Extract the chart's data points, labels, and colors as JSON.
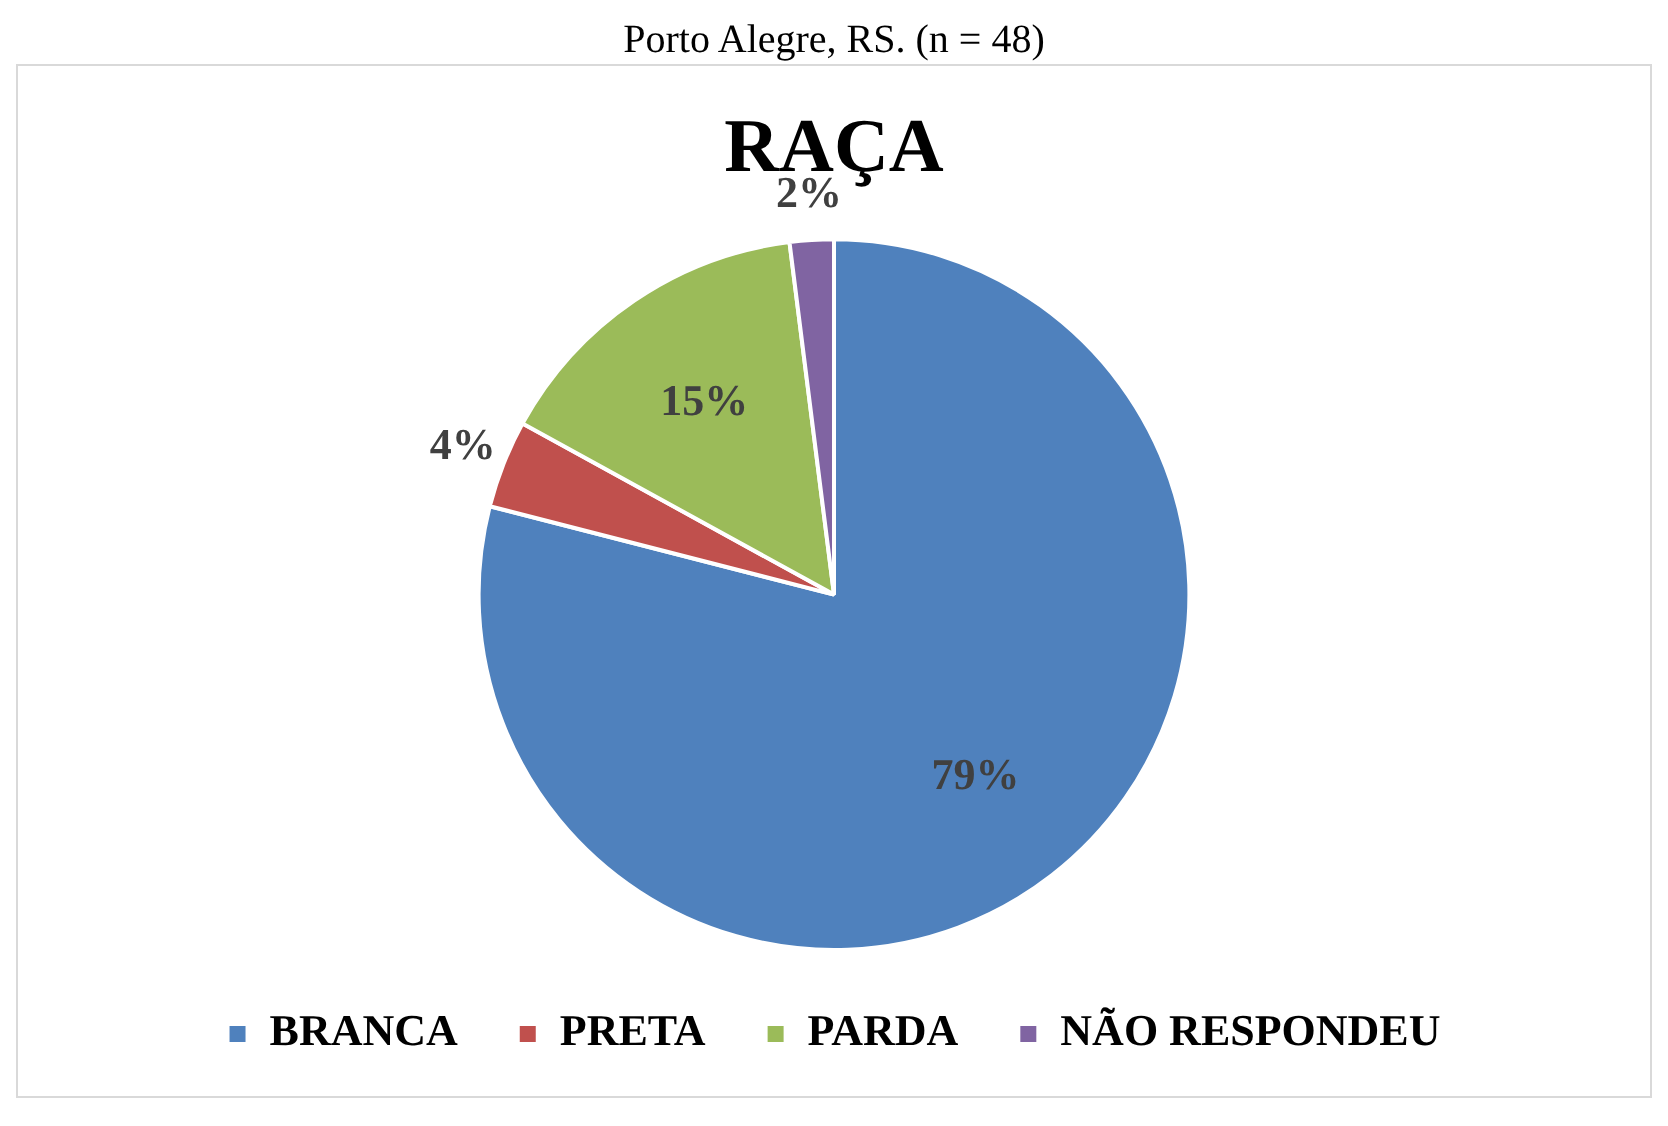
{
  "chart_data": {
    "type": "pie",
    "title": "RAÇA",
    "annotations": [
      "Porto Alegre, RS. (n = 48)"
    ],
    "categories": [
      "BRANCA",
      "PRETA",
      "PARDA",
      "NÃO RESPONDEU"
    ],
    "values": [
      79,
      4,
      15,
      2
    ],
    "colors": [
      "#4f81bd",
      "#c0504d",
      "#9bbb59",
      "#8064a2"
    ],
    "value_labels": [
      "79%",
      "4%",
      "15%",
      "2%"
    ],
    "legend": "bottom"
  }
}
